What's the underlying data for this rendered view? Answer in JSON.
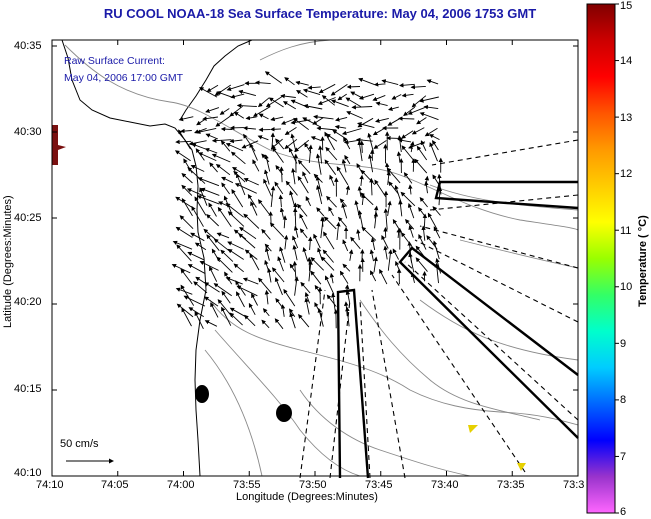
{
  "title": "RU COOL  NOAA-18  Sea Surface Temperature:  May 04, 2006 1753 GMT",
  "annotation": {
    "line1": "Raw Surface Current:",
    "line2": "May 04, 2006 17:00 GMT"
  },
  "scale": {
    "label": "50 cm/s"
  },
  "axes": {
    "xlabel": "Longitude (Degrees:Minutes)",
    "ylabel": "Latitude (Degrees:Minutes)",
    "xticks": [
      "74:10",
      "74:05",
      "74:00",
      "73:55",
      "73:50",
      "73:45",
      "73:40",
      "73:35",
      "73:3"
    ],
    "yticks": [
      "40:35",
      "40:30",
      "40:25",
      "40:20",
      "40:15",
      "40:10"
    ]
  },
  "colorbar": {
    "label": "Temperature ( °C)",
    "ticks": [
      "15",
      "14",
      "13",
      "12",
      "11",
      "10",
      "9",
      "8",
      "7",
      "6"
    ],
    "colors": [
      "#ff66ff",
      "#9933cc",
      "#0000ff",
      "#0066ff",
      "#00ccff",
      "#00ffcc",
      "#33ff66",
      "#99ff00",
      "#ffff00",
      "#ffcc00",
      "#ff9900",
      "#ff5500",
      "#ff0000",
      "#cc0000",
      "#800000"
    ]
  }
}
